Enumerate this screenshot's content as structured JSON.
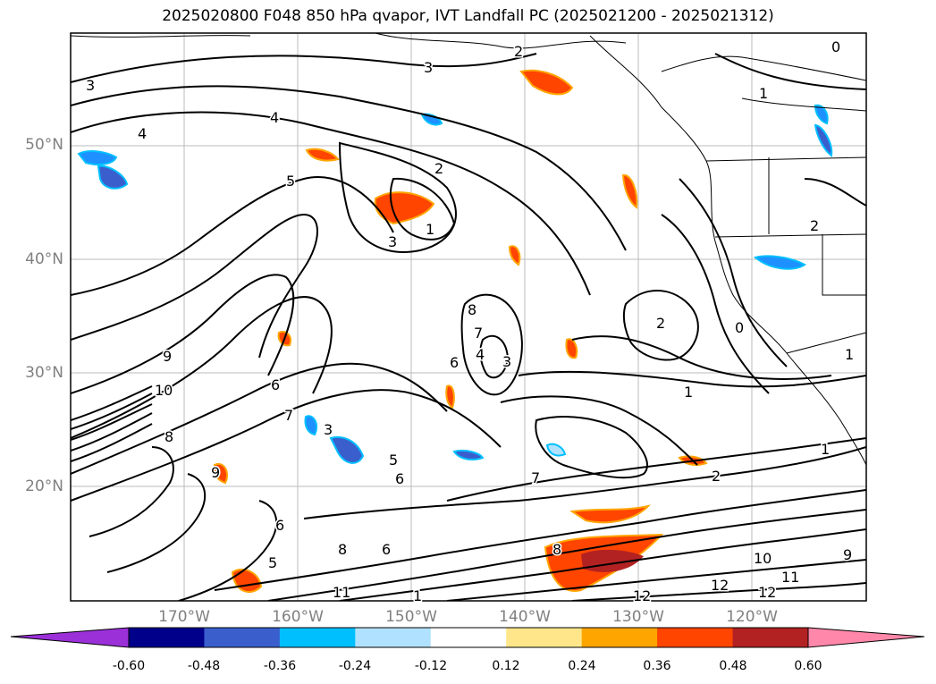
{
  "title": "2025020800 F048 850 hPa qvapor, IVT Landfall PC (2025021200 - 2025021312)",
  "lat_labels": [
    "50°N",
    "40°N",
    "30°N",
    "20°N"
  ],
  "lon_labels": [
    "170°W",
    "160°W",
    "150°W",
    "140°W",
    "130°W",
    "120°W"
  ],
  "colorbar": {
    "colors": [
      "#9b30d9",
      "#00008b",
      "#3a5fcd",
      "#00bfff",
      "#b0e2ff",
      "#ffffff",
      "#ffe68a",
      "#ffa500",
      "#ff4500",
      "#b22222",
      "#ff88aa"
    ],
    "tick_labels": [
      "-0.60",
      "-0.48",
      "-0.36",
      "-0.24",
      "-0.12",
      "0.12",
      "0.24",
      "0.36",
      "0.48",
      "0.60"
    ]
  },
  "contour_labels": [
    "3",
    "3",
    "4",
    "4",
    "2",
    "5",
    "2",
    "1",
    "3",
    "0",
    "1",
    "8",
    "7",
    "6",
    "4",
    "3",
    "2",
    "1",
    "9",
    "10",
    "6",
    "7",
    "3",
    "5",
    "6",
    "7",
    "2",
    "1",
    "8",
    "9",
    "6",
    "5",
    "8",
    "6",
    "8",
    "11",
    "12",
    "12",
    "12",
    "11",
    "10",
    "9",
    "1",
    "2",
    "1",
    "0"
  ]
}
